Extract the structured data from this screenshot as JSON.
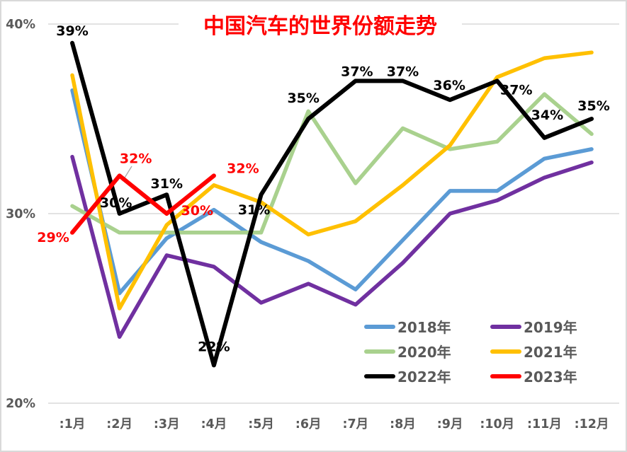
{
  "title": {
    "text": "中国汽车的世界份额走势",
    "color": "#FF0000"
  },
  "chart_data": {
    "type": "line",
    "title": "中国汽车的世界份额走势",
    "categories": [
      ":1月",
      ":2月",
      ":3月",
      ":4月",
      ":5月",
      ":6月",
      ":7月",
      ":8月",
      ":9月",
      ":10月",
      ":11月",
      ":12月"
    ],
    "y_axis": {
      "unit": "%",
      "range": [
        20,
        40
      ],
      "ticks": [
        {
          "value": 40,
          "label": "40%"
        },
        {
          "value": 30,
          "label": "30%"
        },
        {
          "value": 20,
          "label": "20%"
        }
      ]
    },
    "grid": true,
    "colors": {
      "grid": "#D9D9D9",
      "axis_text": "#595959",
      "leader": "#A6A6A6"
    },
    "series": [
      {
        "name": "2018年",
        "color": "#5B9BD5",
        "width": 5.5,
        "values": [
          36.5,
          25.8,
          28.7,
          30.2,
          28.5,
          27.5,
          26.0,
          28.6,
          31.2,
          31.2,
          32.9,
          33.4
        ]
      },
      {
        "name": "2019年",
        "color": "#7030A0",
        "width": 5.5,
        "values": [
          33.0,
          23.5,
          27.8,
          27.2,
          25.3,
          26.3,
          25.2,
          27.4,
          30.0,
          30.7,
          31.9,
          32.7
        ]
      },
      {
        "name": "2020年",
        "color": "#A9D18E",
        "width": 5.5,
        "values": [
          30.4,
          29.0,
          29.0,
          29.0,
          29.0,
          35.4,
          31.6,
          34.5,
          33.4,
          33.8,
          36.3,
          34.2
        ]
      },
      {
        "name": "2021年",
        "color": "#FFC000",
        "width": 5.5,
        "values": [
          37.3,
          25.0,
          29.4,
          31.5,
          30.6,
          28.9,
          29.6,
          31.5,
          33.6,
          37.2,
          38.2,
          38.5
        ]
      },
      {
        "name": "2022年",
        "color": "#000000",
        "width": 6,
        "label_color": "#000000",
        "values": [
          39,
          30,
          31,
          22,
          31,
          35,
          37,
          37,
          36,
          37,
          34,
          35
        ],
        "point_labels": [
          {
            "text": "39%",
            "dx": 0,
            "dy": -18
          },
          {
            "text": "30%",
            "dx": -5,
            "dy": -16
          },
          {
            "text": "31%",
            "dx": 0,
            "dy": -16
          },
          {
            "text": "22%",
            "dx": 0,
            "dy": -27
          },
          {
            "text": "31%",
            "dx": -10,
            "dy": 21
          },
          {
            "text": "35%",
            "dx": -7,
            "dy": -30
          },
          {
            "text": "37%",
            "dx": 2,
            "dy": -14
          },
          {
            "text": "37%",
            "dx": 0,
            "dy": -14
          },
          {
            "text": "36%",
            "dx": -1,
            "dy": -21
          },
          {
            "text": "37%",
            "dx": 27,
            "dy": 12
          },
          {
            "text": "34%",
            "dx": 4,
            "dy": -33
          },
          {
            "text": "35%",
            "dx": 3,
            "dy": -19
          }
        ]
      },
      {
        "name": "2023年",
        "color": "#FF0000",
        "width": 6,
        "label_color": "#FF0000",
        "values": [
          29,
          32,
          30,
          32,
          null,
          null,
          null,
          null,
          null,
          null,
          null,
          null
        ],
        "point_labels": [
          {
            "text": "29%",
            "dx": -27,
            "dy": 6
          },
          {
            "text": "32%",
            "dx": 23,
            "dy": -25
          },
          {
            "text": "30%",
            "dx": 43,
            "dy": -5
          },
          {
            "text": "32%",
            "dx": 41,
            "dy": -11
          }
        ]
      }
    ],
    "annotations": {
      "leader_line": {
        "from": [
          171,
          254
        ],
        "to": [
          184,
          233
        ],
        "color": "#A6A6A6"
      }
    },
    "legend": {
      "position": "inside-bottom-right",
      "entries": [
        {
          "label": "2018年",
          "color": "#5B9BD5"
        },
        {
          "label": "2019年",
          "color": "#7030A0"
        },
        {
          "label": "2020年",
          "color": "#A9D18E"
        },
        {
          "label": "2021年",
          "color": "#FFC000"
        },
        {
          "label": "2022年",
          "color": "#000000"
        },
        {
          "label": "2023年",
          "color": "#FF0000"
        }
      ]
    }
  }
}
